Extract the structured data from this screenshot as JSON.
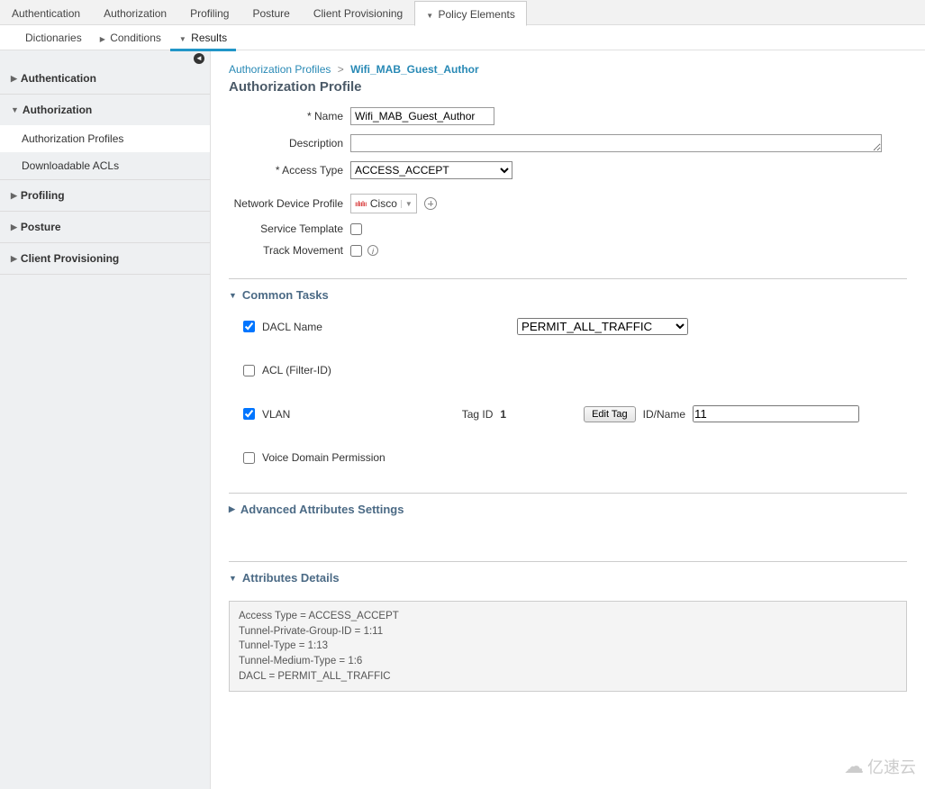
{
  "topTabs": {
    "items": [
      "Authentication",
      "Authorization",
      "Profiling",
      "Posture",
      "Client Provisioning",
      "Policy Elements"
    ],
    "activeIndex": 5
  },
  "subTabs": {
    "items": [
      "Dictionaries",
      "Conditions",
      "Results"
    ],
    "activeIndex": 2
  },
  "sidebar": {
    "sections": [
      {
        "label": "Authentication",
        "expanded": false
      },
      {
        "label": "Authorization",
        "expanded": true,
        "children": [
          {
            "label": "Authorization Profiles",
            "active": true
          },
          {
            "label": "Downloadable ACLs",
            "active": false
          }
        ]
      },
      {
        "label": "Profiling",
        "expanded": false
      },
      {
        "label": "Posture",
        "expanded": false
      },
      {
        "label": "Client Provisioning",
        "expanded": false
      }
    ]
  },
  "breadcrumb": {
    "parent": "Authorization Profiles",
    "sep": ">",
    "current": "Wifi_MAB_Guest_Author"
  },
  "pageTitle": "Authorization Profile",
  "form": {
    "nameLabel": "* Name",
    "nameValue": "Wifi_MAB_Guest_Author",
    "descLabel": "Description",
    "descValue": "",
    "accessTypeLabel": "* Access Type",
    "accessTypeValue": "ACCESS_ACCEPT",
    "ndpLabel": "Network Device Profile",
    "ndpValue": "Cisco",
    "serviceTplLabel": "Service Template",
    "serviceTplChecked": false,
    "trackMoveLabel": "Track Movement",
    "trackMoveChecked": false
  },
  "commonTasks": {
    "title": "Common Tasks",
    "dacl": {
      "checked": true,
      "label": "DACL Name",
      "value": "PERMIT_ALL_TRAFFIC"
    },
    "acl": {
      "checked": false,
      "label": "ACL  (Filter-ID)"
    },
    "vlan": {
      "checked": true,
      "label": "VLAN",
      "tagIdLabel": "Tag ID",
      "tagId": "1",
      "editTag": "Edit Tag",
      "idNameLabel": "ID/Name",
      "idName": "11"
    },
    "voice": {
      "checked": false,
      "label": "Voice Domain Permission"
    }
  },
  "advanced": {
    "title": "Advanced Attributes Settings"
  },
  "attrDetails": {
    "title": "Attributes Details",
    "lines": [
      "Access Type = ACCESS_ACCEPT",
      "Tunnel-Private-Group-ID = 1:11",
      "Tunnel-Type = 1:13",
      "Tunnel-Medium-Type = 1:6",
      "DACL = PERMIT_ALL_TRAFFIC"
    ]
  },
  "watermark": "亿速云",
  "colors": {
    "accent": "#2196c8",
    "link": "#2889b5",
    "sidebarBg": "#eef0f2",
    "border": "#cccccc"
  }
}
